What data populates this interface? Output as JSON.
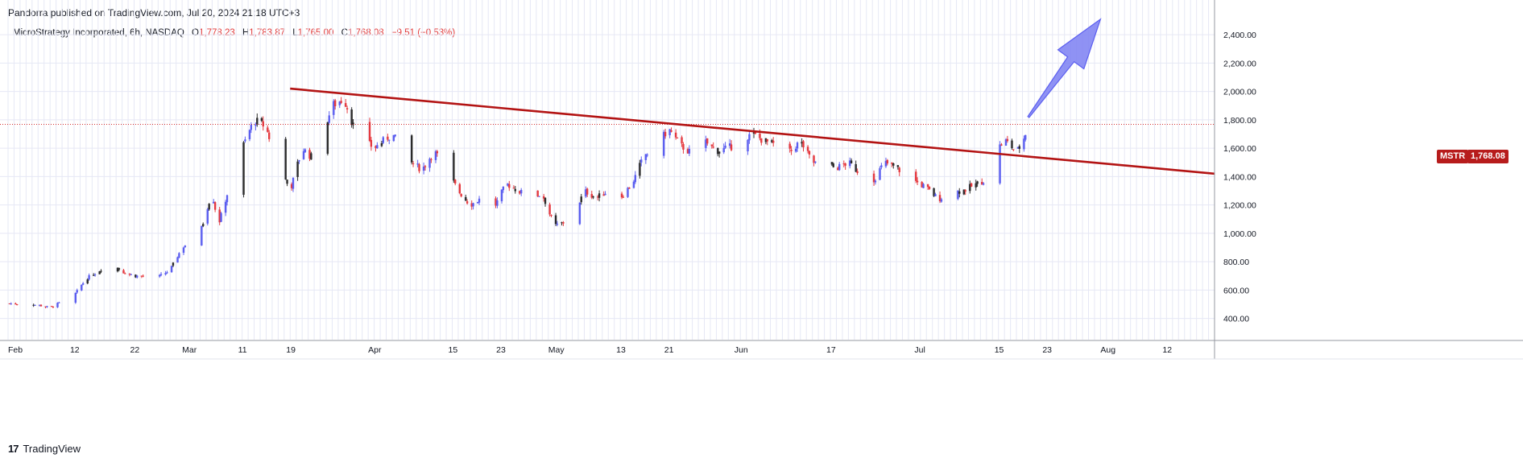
{
  "header": {
    "published_by": "Pandorra published on TradingView.com, Jul 20, 2024 21:18 UTC+3"
  },
  "legend": {
    "symbol": "MicroStrategy Incorporated, 6h, NASDAQ",
    "o_label": "O",
    "o_value": "1,778.23",
    "h_label": "H",
    "h_value": "1,783.87",
    "l_label": "L",
    "l_value": "1,765.00",
    "c_label": "C",
    "c_value": "1,768.08",
    "change": "−9.51 (−0.53%)"
  },
  "price_tag": {
    "symbol": "MSTR",
    "value": "1,768.08"
  },
  "footer": {
    "logo_text": "TradingView",
    "logo_mark": "17"
  },
  "colors": {
    "up": "#5b5ef0",
    "down": "#e5393f",
    "neutral": "#2b2b2b",
    "trendline": "#b31313",
    "arrow_fill": "#7b7ff2",
    "grid": "#e6e8f5",
    "price_line": "#d32f2f"
  },
  "chart_data": {
    "type": "candlestick",
    "title": "MicroStrategy Incorporated, 6h, NASDAQ",
    "ylim": [
      250,
      2520
    ],
    "y_ticks": [
      "400.00",
      "600.00",
      "800.00",
      "1,000.00",
      "1,200.00",
      "1,400.00",
      "1,600.00",
      "1,800.00",
      "2,000.00",
      "2,200.00",
      "2,400.00"
    ],
    "x_ticks": [
      "Feb",
      "12",
      "22",
      "Mar",
      "11",
      "19",
      "Apr",
      "15",
      "23",
      "May",
      "13",
      "21",
      "Jun",
      "17",
      "Jul",
      "15",
      "23",
      "Aug",
      "12"
    ],
    "x_range": [
      "2024-02-01",
      "2024-08-20"
    ],
    "last_price": 1768.08,
    "close_path": [
      {
        "date": "2024-02-01",
        "close": 505
      },
      {
        "date": "2024-02-06",
        "close": 495
      },
      {
        "date": "2024-02-08",
        "close": 475
      },
      {
        "date": "2024-02-12",
        "close": 560
      },
      {
        "date": "2024-02-14",
        "close": 680
      },
      {
        "date": "2024-02-16",
        "close": 730
      },
      {
        "date": "2024-02-18",
        "close": 800
      },
      {
        "date": "2024-02-20",
        "close": 730
      },
      {
        "date": "2024-02-22",
        "close": 700
      },
      {
        "date": "2024-02-26",
        "close": 690
      },
      {
        "date": "2024-02-28",
        "close": 740
      },
      {
        "date": "2024-03-01",
        "close": 900
      },
      {
        "date": "2024-03-04",
        "close": 1000
      },
      {
        "date": "2024-03-06",
        "close": 1300
      },
      {
        "date": "2024-03-07",
        "close": 1050
      },
      {
        "date": "2024-03-09",
        "close": 1350
      },
      {
        "date": "2024-03-11",
        "close": 1600
      },
      {
        "date": "2024-03-13",
        "close": 1800
      },
      {
        "date": "2024-03-15",
        "close": 1750
      },
      {
        "date": "2024-03-16",
        "close": 1600
      },
      {
        "date": "2024-03-18",
        "close": 1400
      },
      {
        "date": "2024-03-19",
        "close": 1300
      },
      {
        "date": "2024-03-21",
        "close": 1600
      },
      {
        "date": "2024-03-23",
        "close": 1520
      },
      {
        "date": "2024-03-26",
        "close": 1900
      },
      {
        "date": "2024-03-28",
        "close": 1950
      },
      {
        "date": "2024-03-30",
        "close": 1700
      },
      {
        "date": "2024-04-02",
        "close": 1600
      },
      {
        "date": "2024-04-05",
        "close": 1700
      },
      {
        "date": "2024-04-08",
        "close": 1500
      },
      {
        "date": "2024-04-10",
        "close": 1450
      },
      {
        "date": "2024-04-12",
        "close": 1580
      },
      {
        "date": "2024-04-14",
        "close": 1450
      },
      {
        "date": "2024-04-16",
        "close": 1300
      },
      {
        "date": "2024-04-18",
        "close": 1200
      },
      {
        "date": "2024-04-20",
        "close": 1250
      },
      {
        "date": "2024-04-22",
        "close": 1180
      },
      {
        "date": "2024-04-24",
        "close": 1350
      },
      {
        "date": "2024-04-26",
        "close": 1300
      },
      {
        "date": "2024-04-28",
        "close": 1250
      },
      {
        "date": "2024-04-30",
        "close": 1280
      },
      {
        "date": "2024-05-02",
        "close": 1050
      },
      {
        "date": "2024-05-05",
        "close": 1100
      },
      {
        "date": "2024-05-07",
        "close": 1300
      },
      {
        "date": "2024-05-09",
        "close": 1250
      },
      {
        "date": "2024-05-11",
        "close": 1300
      },
      {
        "date": "2024-05-13",
        "close": 1250
      },
      {
        "date": "2024-05-15",
        "close": 1350
      },
      {
        "date": "2024-05-17",
        "close": 1550
      },
      {
        "date": "2024-05-19",
        "close": 1600
      },
      {
        "date": "2024-05-21",
        "close": 1740
      },
      {
        "date": "2024-05-23",
        "close": 1620
      },
      {
        "date": "2024-05-25",
        "close": 1560
      },
      {
        "date": "2024-05-27",
        "close": 1650
      },
      {
        "date": "2024-05-29",
        "close": 1580
      },
      {
        "date": "2024-05-31",
        "close": 1600
      },
      {
        "date": "2024-06-02",
        "close": 1650
      },
      {
        "date": "2024-06-04",
        "close": 1700
      },
      {
        "date": "2024-06-06",
        "close": 1650
      },
      {
        "date": "2024-06-08",
        "close": 1620
      },
      {
        "date": "2024-06-10",
        "close": 1560
      },
      {
        "date": "2024-06-12",
        "close": 1650
      },
      {
        "date": "2024-06-14",
        "close": 1500
      },
      {
        "date": "2024-06-16",
        "close": 1480
      },
      {
        "date": "2024-06-18",
        "close": 1460
      },
      {
        "date": "2024-06-20",
        "close": 1500
      },
      {
        "date": "2024-06-22",
        "close": 1420
      },
      {
        "date": "2024-06-24",
        "close": 1360
      },
      {
        "date": "2024-06-26",
        "close": 1500
      },
      {
        "date": "2024-06-28",
        "close": 1460
      },
      {
        "date": "2024-07-01",
        "close": 1370
      },
      {
        "date": "2024-07-03",
        "close": 1320
      },
      {
        "date": "2024-07-05",
        "close": 1240
      },
      {
        "date": "2024-07-07",
        "close": 1290
      },
      {
        "date": "2024-07-09",
        "close": 1300
      },
      {
        "date": "2024-07-11",
        "close": 1340
      },
      {
        "date": "2024-07-13",
        "close": 1380
      },
      {
        "date": "2024-07-15",
        "close": 1600
      },
      {
        "date": "2024-07-16",
        "close": 1660
      },
      {
        "date": "2024-07-17",
        "close": 1620
      },
      {
        "date": "2024-07-18",
        "close": 1570
      },
      {
        "date": "2024-07-19",
        "close": 1640
      },
      {
        "date": "2024-07-20",
        "close": 1768
      }
    ],
    "trendline": {
      "x1": "2024-03-19",
      "y1": 2020,
      "x2": "2024-08-20",
      "y2": 1420
    },
    "arrow": {
      "from": {
        "date": "2024-07-20",
        "value": 1820
      },
      "to": {
        "date": "2024-08-01",
        "value": 2510
      }
    }
  }
}
